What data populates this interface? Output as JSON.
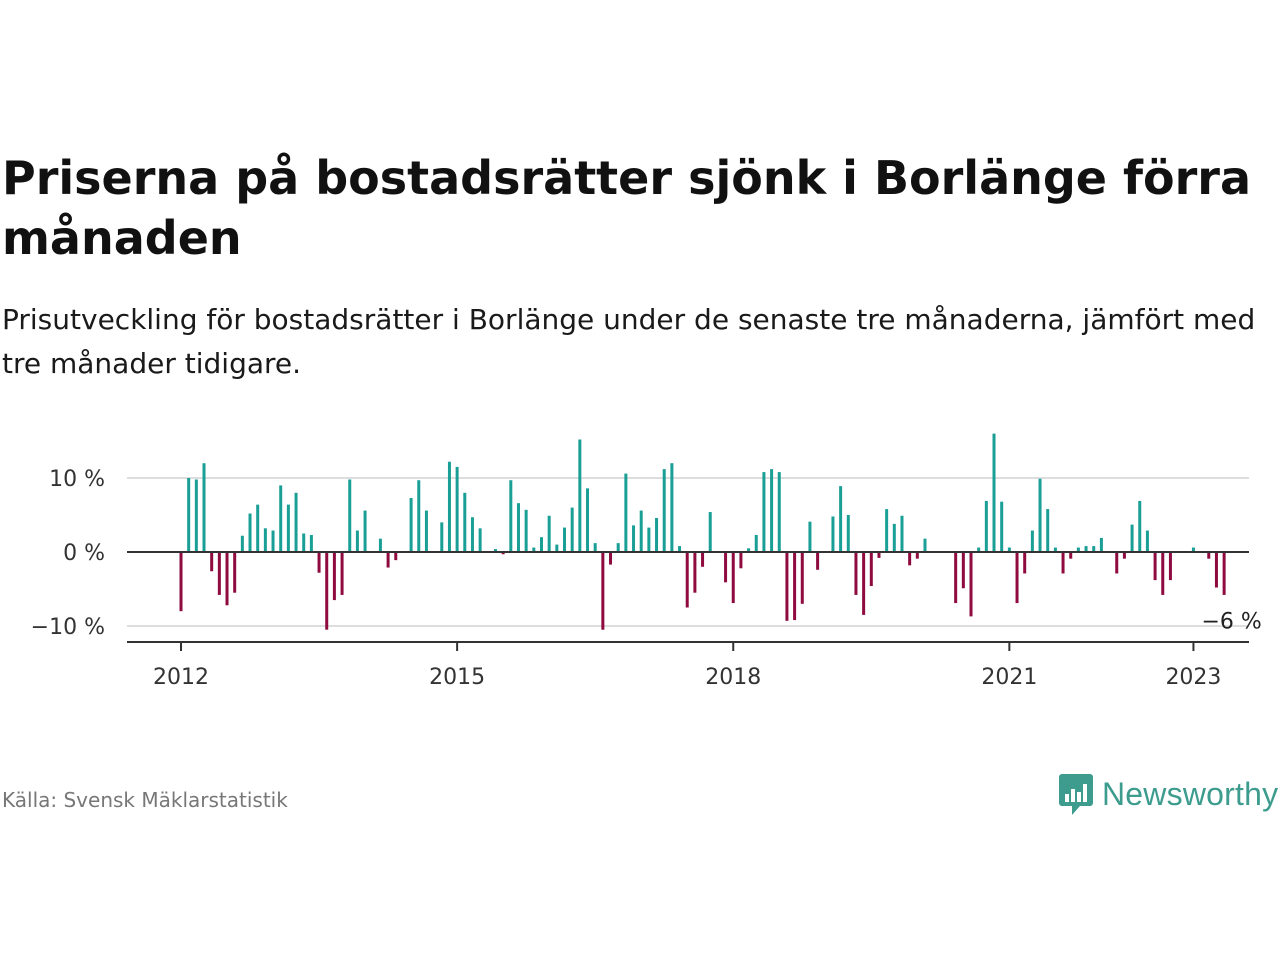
{
  "header": {
    "title": "Priserna på bostadsrätter sjönk i Borlänge förra månaden",
    "subtitle": "Prisutveckling för bostadsrätter i Borlänge under de senaste tre månaderna, jämfört med tre månader tidigare."
  },
  "footer": {
    "source": "Källa: Svensk Mäklarstatistik",
    "brand": "Newsworthy"
  },
  "colors": {
    "positive": "#1a9f97",
    "negative": "#8e0a3f",
    "axis": "#333333",
    "grid": "#dddddd"
  },
  "chart_data": {
    "type": "bar",
    "x_start": "2012-01",
    "x_interval": "month",
    "ylim": [
      -12,
      16
    ],
    "y_ticks": [
      -10,
      0,
      10
    ],
    "y_tick_labels": [
      "−10 %",
      "0 %",
      "10 %"
    ],
    "x_ticks": [
      "2012-01",
      "2015-01",
      "2018-01",
      "2021-01",
      "2023-01"
    ],
    "x_tick_labels": [
      "2012",
      "2015",
      "2018",
      "2021",
      "2023"
    ],
    "grid": true,
    "annotation": {
      "text": "−6 %",
      "at": "2023-06",
      "value": -6
    },
    "values": [
      -8,
      10,
      9.8,
      12,
      -2.6,
      -5.8,
      -7.2,
      -5.5,
      2.2,
      5.2,
      6.4,
      3.2,
      2.9,
      9,
      6.4,
      8,
      2.5,
      2.3,
      -2.8,
      -10.5,
      -6.5,
      -5.8,
      9.8,
      2.9,
      5.6,
      0,
      1.8,
      -2.1,
      -1.1,
      0,
      7.3,
      9.7,
      5.6,
      0,
      4,
      12.2,
      11.5,
      8,
      4.7,
      3.2,
      0,
      0.4,
      -0.3,
      9.7,
      6.6,
      5.7,
      0.6,
      2,
      4.9,
      1,
      3.3,
      6,
      15.2,
      8.6,
      1.2,
      -10.5,
      -1.7,
      1.2,
      10.6,
      3.6,
      5.6,
      3.3,
      4.6,
      11.2,
      12,
      0.8,
      -7.5,
      -5.5,
      -2,
      5.4,
      0,
      -4.1,
      -6.9,
      -2.2,
      0.5,
      2.3,
      10.8,
      11.2,
      10.8,
      -9.3,
      -9.2,
      -7,
      4.1,
      -2.4,
      0,
      4.8,
      8.9,
      5,
      -5.8,
      -8.5,
      -4.6,
      -0.8,
      5.8,
      3.8,
      4.9,
      -1.8,
      -0.9,
      1.8,
      0,
      0,
      0,
      -6.9,
      -4.9,
      -8.7,
      0.6,
      6.9,
      16,
      6.8,
      0.6,
      -6.9,
      -2.9,
      2.9,
      9.9,
      5.8,
      0.6,
      -2.9,
      -0.9,
      0.6,
      0.8,
      0.8,
      1.9,
      0,
      -2.9,
      -0.9,
      3.7,
      6.9,
      2.9,
      -3.8,
      -5.8,
      -3.8,
      0,
      0,
      0.6,
      0,
      -0.9,
      -4.8,
      -5.8
    ]
  }
}
